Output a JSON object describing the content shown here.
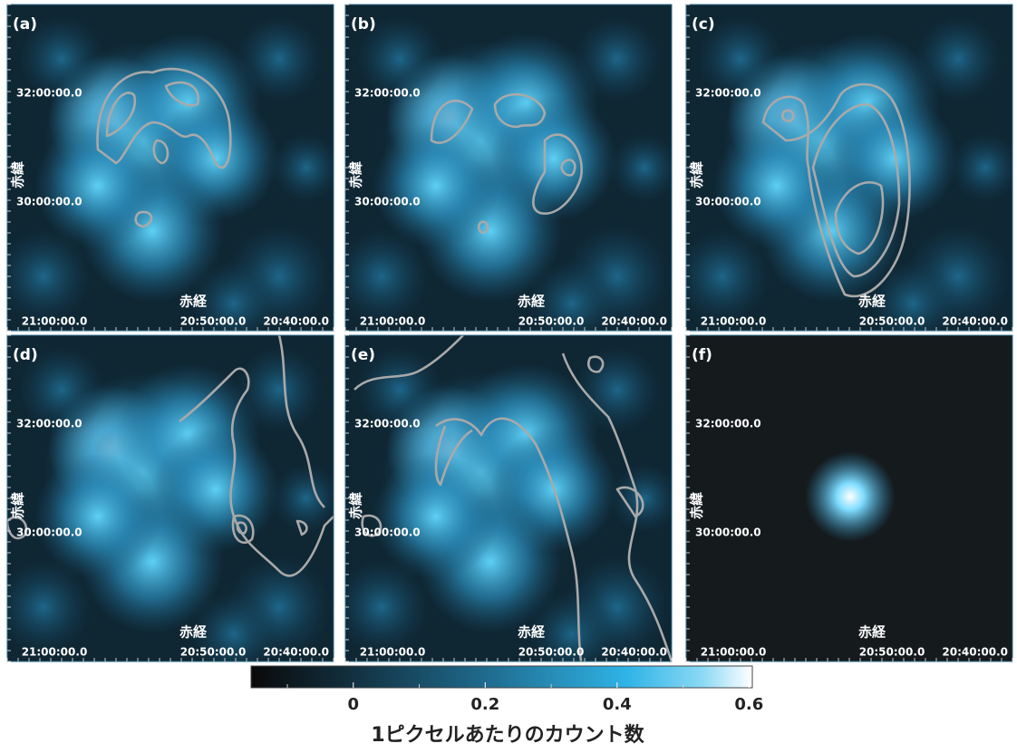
{
  "panels": [
    {
      "label": "(a)"
    },
    {
      "label": "(b)"
    },
    {
      "label": "(c)"
    },
    {
      "label": "(d)"
    },
    {
      "label": "(e)"
    },
    {
      "label": "(f)"
    }
  ],
  "axes": {
    "x_label": "赤経",
    "y_label": "赤緯",
    "x_ticks": [
      "21:00:00.0",
      "20:50:00.0",
      "20:40:00.0"
    ],
    "y_ticks": [
      "32:00:00.0",
      "30:00:00.0"
    ]
  },
  "colorbar": {
    "label": "1ピクセルあたりのカウント数",
    "lim": [
      -0.155,
      0.605
    ],
    "ticks": [
      0,
      0.2,
      0.4,
      0.6
    ],
    "minor_ticks": [
      -0.1,
      0.1,
      0.3,
      0.5
    ]
  }
}
